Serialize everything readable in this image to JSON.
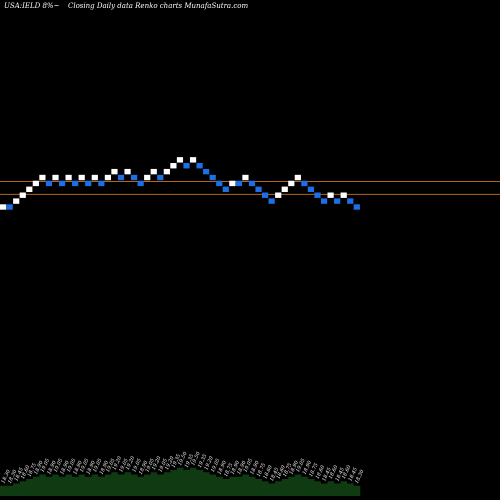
{
  "header": {
    "symbol": "USA:IELD 8%~",
    "description": "Closing Daily data Renko  charts MunafaSutra.com"
  },
  "chart_data": {
    "type": "renko",
    "colors": {
      "up": "#ffffff",
      "down": "#1e6fe6",
      "reference_line": "#b5651d",
      "volume_area": "#0f3a12",
      "background": "#000000"
    },
    "reference_lines": [
      18.95,
      18.62
    ],
    "bricks": [
      {
        "dir": "up",
        "value": 18.3
      },
      {
        "dir": "down",
        "value": 18.3
      },
      {
        "dir": "up",
        "value": 18.45
      },
      {
        "dir": "up",
        "value": 18.6
      },
      {
        "dir": "up",
        "value": 18.75
      },
      {
        "dir": "up",
        "value": 18.9
      },
      {
        "dir": "up",
        "value": 19.05
      },
      {
        "dir": "down",
        "value": 18.9
      },
      {
        "dir": "up",
        "value": 19.05
      },
      {
        "dir": "down",
        "value": 18.9
      },
      {
        "dir": "up",
        "value": 19.05
      },
      {
        "dir": "down",
        "value": 18.9
      },
      {
        "dir": "up",
        "value": 19.05
      },
      {
        "dir": "down",
        "value": 18.9
      },
      {
        "dir": "up",
        "value": 19.05
      },
      {
        "dir": "down",
        "value": 18.9
      },
      {
        "dir": "up",
        "value": 19.05
      },
      {
        "dir": "up",
        "value": 19.2
      },
      {
        "dir": "down",
        "value": 19.05
      },
      {
        "dir": "up",
        "value": 19.2
      },
      {
        "dir": "down",
        "value": 19.05
      },
      {
        "dir": "down",
        "value": 18.9
      },
      {
        "dir": "up",
        "value": 19.05
      },
      {
        "dir": "up",
        "value": 19.2
      },
      {
        "dir": "down",
        "value": 19.05
      },
      {
        "dir": "up",
        "value": 19.2
      },
      {
        "dir": "up",
        "value": 19.35
      },
      {
        "dir": "up",
        "value": 19.5
      },
      {
        "dir": "down",
        "value": 19.35
      },
      {
        "dir": "up",
        "value": 19.5
      },
      {
        "dir": "down",
        "value": 19.35
      },
      {
        "dir": "down",
        "value": 19.2
      },
      {
        "dir": "down",
        "value": 19.05
      },
      {
        "dir": "down",
        "value": 18.9
      },
      {
        "dir": "down",
        "value": 18.75
      },
      {
        "dir": "up",
        "value": 18.9
      },
      {
        "dir": "down",
        "value": 18.9
      },
      {
        "dir": "up",
        "value": 19.05
      },
      {
        "dir": "down",
        "value": 18.9
      },
      {
        "dir": "down",
        "value": 18.75
      },
      {
        "dir": "down",
        "value": 18.6
      },
      {
        "dir": "down",
        "value": 18.45
      },
      {
        "dir": "up",
        "value": 18.6
      },
      {
        "dir": "up",
        "value": 18.75
      },
      {
        "dir": "up",
        "value": 18.9
      },
      {
        "dir": "up",
        "value": 19.05
      },
      {
        "dir": "down",
        "value": 18.9
      },
      {
        "dir": "down",
        "value": 18.75
      },
      {
        "dir": "down",
        "value": 18.6
      },
      {
        "dir": "down",
        "value": 18.45
      },
      {
        "dir": "up",
        "value": 18.6
      },
      {
        "dir": "down",
        "value": 18.45
      },
      {
        "dir": "up",
        "value": 18.6
      },
      {
        "dir": "down",
        "value": 18.45
      },
      {
        "dir": "down",
        "value": 18.3
      }
    ],
    "value_labels": [
      "18.30",
      "18.30",
      "18.45",
      "18.60",
      "18.75",
      "18.90",
      "19.05",
      "18.90",
      "19.05",
      "18.90",
      "19.05",
      "18.90",
      "19.05",
      "18.90",
      "19.05",
      "18.90",
      "19.05",
      "19.20",
      "19.05",
      "19.20",
      "19.05",
      "18.90",
      "19.05",
      "19.20",
      "19.05",
      "19.20",
      "19.35",
      "19.50",
      "19.35",
      "19.50",
      "19.35",
      "19.20",
      "19.05",
      "18.90",
      "18.75",
      "18.90",
      "18.90",
      "19.05",
      "18.90",
      "18.75",
      "18.60",
      "18.45",
      "18.60",
      "18.75",
      "18.90",
      "19.05",
      "18.90",
      "18.75",
      "18.60",
      "18.45",
      "18.60",
      "18.45",
      "18.60",
      "18.45",
      "18.30"
    ]
  }
}
